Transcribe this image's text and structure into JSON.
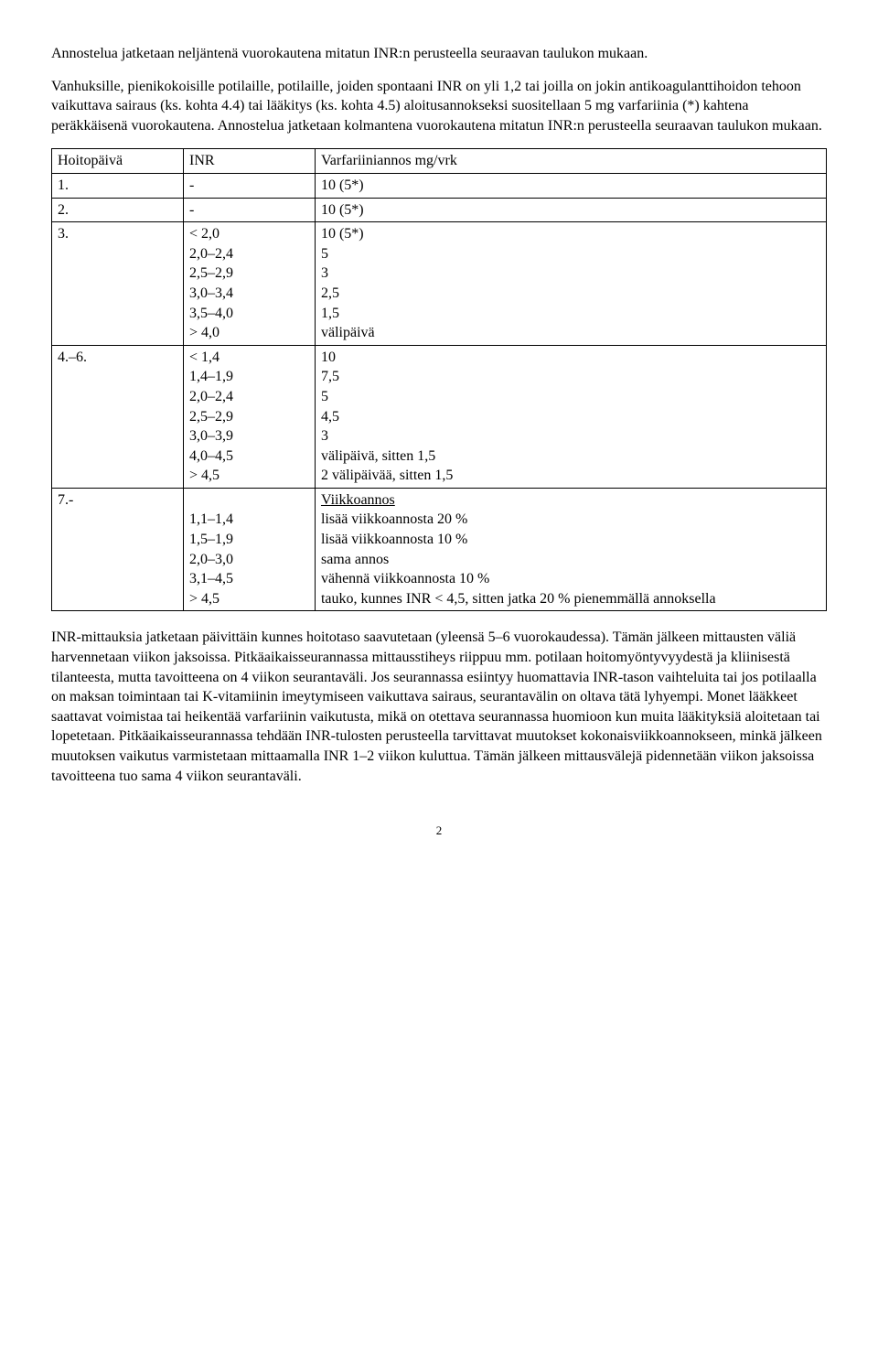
{
  "para1": "Annostelua jatketaan neljäntenä vuorokautena mitatun INR:n perusteella seuraavan taulukon mukaan.",
  "para2": "Vanhuksille, pienikokoisille potilaille, potilaille, joiden spontaani INR on yli 1,2 tai joilla on jokin antikoagulanttihoidon tehoon vaikuttava sairaus (ks. kohta 4.4) tai lääkitys (ks. kohta 4.5) aloitusannokseksi suositellaan 5 mg varfariinia (*) kahtena peräkkäisenä vuorokautena. Annostelua jatketaan kolmantena vuorokautena mitatun INR:n perusteella seuraavan taulukon mukaan.",
  "table": {
    "header": {
      "a": "Hoitopäivä",
      "b": "INR",
      "c": "Varfariiniannos mg/vrk"
    },
    "rows": [
      {
        "a": "1.",
        "b": "-",
        "c": "10 (5*)"
      },
      {
        "a": "2.",
        "b": "-",
        "c": "10 (5*)"
      },
      {
        "a": "3.",
        "b": [
          "< 2,0",
          "2,0–2,4",
          "2,5–2,9",
          "3,0–3,4",
          "3,5–4,0",
          "> 4,0"
        ],
        "c": [
          "10 (5*)",
          "5",
          "3",
          "2,5",
          "1,5",
          "välipäivä"
        ]
      },
      {
        "a": "4.–6.",
        "b": [
          "< 1,4",
          "1,4–1,9",
          "2,0–2,4",
          "2,5–2,9",
          "3,0–3,9",
          "4,0–4,5",
          "> 4,5"
        ],
        "c": [
          "10",
          "7,5",
          "5",
          "4,5",
          "3",
          "välipäivä, sitten 1,5",
          "2 välipäivää, sitten 1,5"
        ]
      },
      {
        "a": "7.-",
        "b": [
          "",
          "1,1–1,4",
          "1,5–1,9",
          "2,0–3,0",
          "3,1–4,5",
          "> 4,5"
        ],
        "c_heading": "Viikkoannos",
        "c": [
          "lisää viikkoannosta 20 %",
          "lisää viikkoannosta 10 %",
          "sama annos",
          "vähennä viikkoannosta 10 %",
          "tauko, kunnes INR < 4,5, sitten jatka 20 % pienemmällä annoksella"
        ]
      }
    ]
  },
  "para3": "INR-mittauksia jatketaan päivittäin kunnes hoitotaso saavutetaan (yleensä 5–6 vuorokaudessa). Tämän jälkeen mittausten väliä harvennetaan viikon jaksoissa. Pitkäaikaisseurannassa mittausstiheys riippuu mm. potilaan hoitomyöntyvyydestä ja kliinisestä tilanteesta, mutta tavoitteena on 4 viikon seurantaväli. Jos seurannassa esiintyy huomattavia INR-tason vaihteluita tai jos potilaalla on maksan toimintaan tai K-vitamiinin imeytymiseen vaikuttava sairaus, seurantavälin on oltava tätä lyhyempi. Monet lääkkeet saattavat voimistaa tai heikentää varfariinin vaikutusta, mikä on otettava seurannassa huomioon kun muita lääkityksiä aloitetaan tai lopetetaan. Pitkäaikaisseurannassa tehdään INR-tulosten perusteella tarvittavat muutokset kokonaisviikkoannokseen, minkä jälkeen muutoksen vaikutus varmistetaan mittaamalla INR 1–2 viikon kuluttua. Tämän jälkeen mittausvälejä pidennetään viikon jaksoissa tavoitteena tuo sama 4 viikon seurantaväli.",
  "page_number": "2"
}
